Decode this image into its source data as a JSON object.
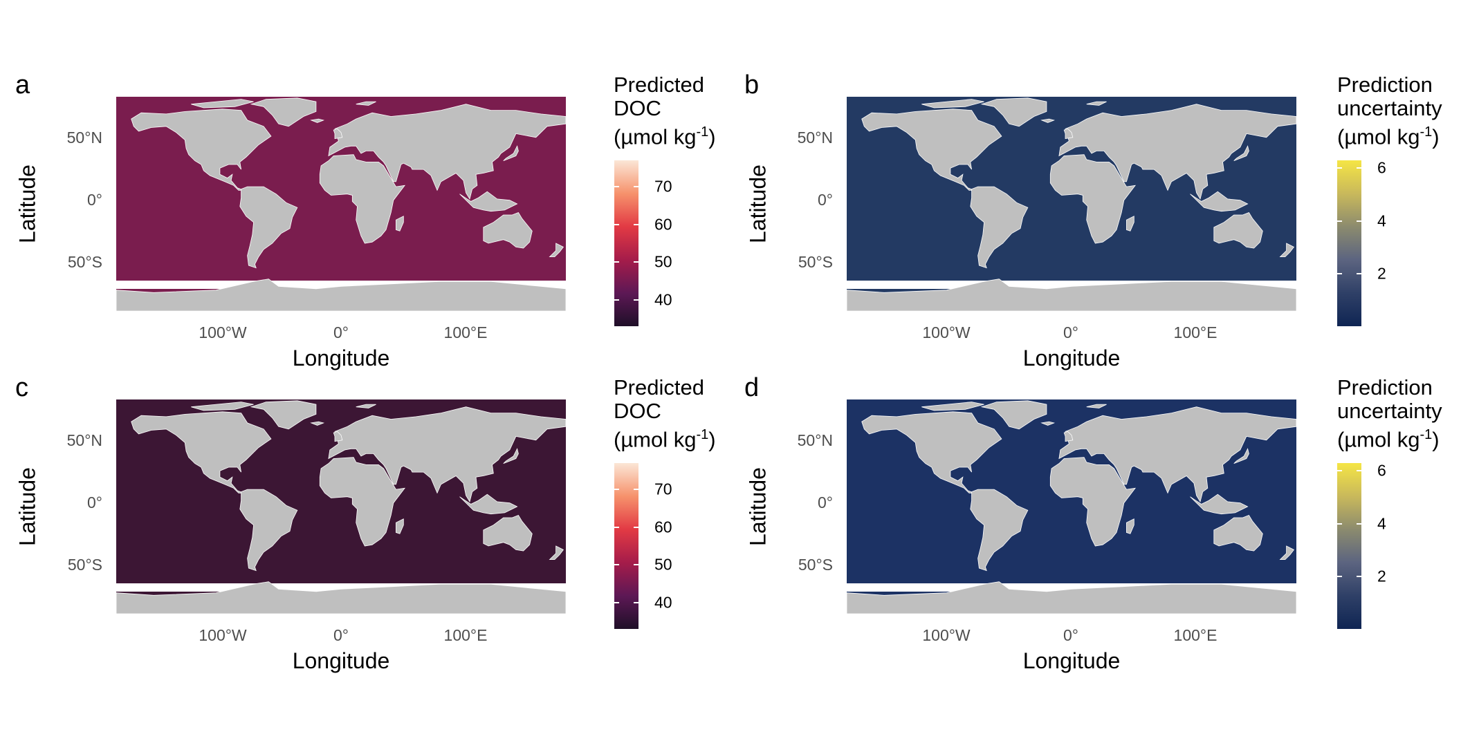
{
  "panels": [
    {
      "letter": "a",
      "ocean_color": "#7a1d4e",
      "legend_title_lines": [
        "Predicted",
        "DOC"
      ],
      "legend_unit_prefix": "(µmol kg",
      "legend_unit_sup": "-1",
      "legend_unit_suffix": ")",
      "colorbar_stops": [
        "#fbe6d6",
        "#f6926c",
        "#e23a44",
        "#a51c4a",
        "#5d1855",
        "#1f0f28"
      ],
      "colorbar_ticks": [
        "70",
        "60",
        "50",
        "40"
      ],
      "colorbar_range": [
        33,
        77
      ],
      "ticks": {
        "y": [
          "50°N",
          "0°",
          "50°S"
        ],
        "x": [
          "100°W",
          "0°",
          "100°E"
        ]
      },
      "axis_labels": {
        "x": "Longitude",
        "y": "Latitude"
      }
    },
    {
      "letter": "b",
      "ocean_color": "#233a63",
      "legend_title_lines": [
        "Prediction",
        "uncertainty"
      ],
      "legend_unit_prefix": "(µmol kg",
      "legend_unit_sup": "-1",
      "legend_unit_suffix": ")",
      "colorbar_stops": [
        "#f5e545",
        "#c9b95b",
        "#8c8b6e",
        "#5c6480",
        "#2f4067",
        "#0f2553"
      ],
      "colorbar_ticks": [
        "6",
        "4",
        "2"
      ],
      "colorbar_range": [
        0,
        6.3
      ],
      "ticks": {
        "y": [
          "50°N",
          "0°",
          "50°S"
        ],
        "x": [
          "100°W",
          "0°",
          "100°E"
        ]
      },
      "axis_labels": {
        "x": "Longitude",
        "y": "Latitude"
      }
    },
    {
      "letter": "c",
      "ocean_color": "#3c1634",
      "legend_title_lines": [
        "Predicted",
        "DOC"
      ],
      "legend_unit_prefix": "(µmol kg",
      "legend_unit_sup": "-1",
      "legend_unit_suffix": ")",
      "colorbar_stops": [
        "#fbe6d6",
        "#f6926c",
        "#e23a44",
        "#a51c4a",
        "#5d1855",
        "#1f0f28"
      ],
      "colorbar_ticks": [
        "70",
        "60",
        "50",
        "40"
      ],
      "colorbar_range": [
        33,
        77
      ],
      "ticks": {
        "y": [
          "50°N",
          "0°",
          "50°S"
        ],
        "x": [
          "100°W",
          "0°",
          "100°E"
        ]
      },
      "axis_labels": {
        "x": "Longitude",
        "y": "Latitude"
      }
    },
    {
      "letter": "d",
      "ocean_color": "#1c3264",
      "legend_title_lines": [
        "Prediction",
        "uncertainty"
      ],
      "legend_unit_prefix": "(µmol kg",
      "legend_unit_sup": "-1",
      "legend_unit_suffix": ")",
      "colorbar_stops": [
        "#f5e545",
        "#c9b95b",
        "#8c8b6e",
        "#5c6480",
        "#2f4067",
        "#0f2553"
      ],
      "colorbar_ticks": [
        "6",
        "4",
        "2"
      ],
      "colorbar_range": [
        0,
        6.3
      ],
      "ticks": {
        "y": [
          "50°N",
          "0°",
          "50°S"
        ],
        "x": [
          "100°W",
          "0°",
          "100°E"
        ]
      },
      "axis_labels": {
        "x": "Longitude",
        "y": "Latitude"
      }
    }
  ],
  "land_color": "#bfbfbf"
}
